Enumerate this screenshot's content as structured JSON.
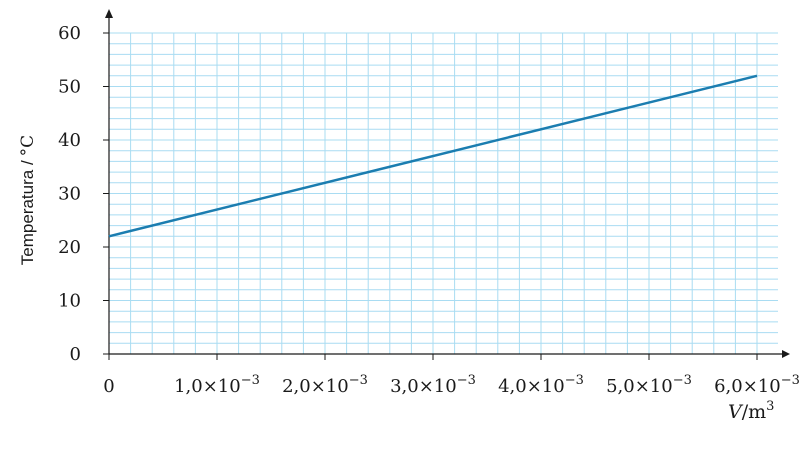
{
  "chart_data": {
    "type": "line",
    "title": "",
    "xlabel_var": "V",
    "xlabel_unit": "/m",
    "xlabel_unit_sup": "3",
    "ylabel": "Temperatura /",
    "ylabel_unit": "°C",
    "xlim": [
      0,
      0.006
    ],
    "ylim": [
      0,
      60
    ],
    "grid": true,
    "x_ticks": [
      {
        "value": 0,
        "label": "0"
      },
      {
        "value": 0.001,
        "label": "1,0×10",
        "exp": "−3"
      },
      {
        "value": 0.002,
        "label": "2,0×10",
        "exp": "−3"
      },
      {
        "value": 0.003,
        "label": "3,0×10",
        "exp": "−3"
      },
      {
        "value": 0.004,
        "label": "4,0×10",
        "exp": "−3"
      },
      {
        "value": 0.005,
        "label": "5,0×10",
        "exp": "−3"
      },
      {
        "value": 0.006,
        "label": "6,0×10",
        "exp": "−3"
      }
    ],
    "y_ticks": [
      0,
      10,
      20,
      30,
      40,
      50,
      60
    ],
    "series": [
      {
        "x": [
          0,
          0.006
        ],
        "y": [
          22,
          52
        ]
      }
    ],
    "colors": {
      "line": "#1b7db0",
      "grid": "#a9dcf2",
      "axis": "#1a1a1a"
    }
  }
}
